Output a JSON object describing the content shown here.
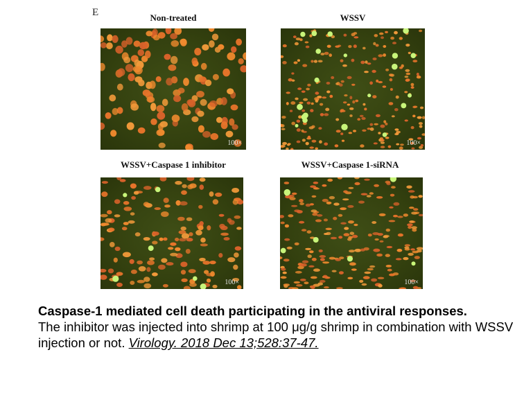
{
  "figure": {
    "panel_letter": "E",
    "panels": [
      {
        "id": "non-treated",
        "title": "Non-treated",
        "magnification": "100×",
        "orange_cells": 130,
        "green_cells": 0
      },
      {
        "id": "wssv",
        "title": "WSSV",
        "magnification": "100×",
        "orange_cells": 230,
        "green_cells": 20
      },
      {
        "id": "caspase-inhibitor",
        "title": "WSSV+Caspase 1 inhibitor",
        "magnification": "100×",
        "orange_cells": 140,
        "green_cells": 6
      },
      {
        "id": "caspase-sirna",
        "title": "WSSV+Caspase 1-siRNA",
        "magnification": "100×",
        "orange_cells": 200,
        "green_cells": 7
      }
    ],
    "colors": {
      "background": "#34410f",
      "orange_cell": "#e8742a",
      "green_cell": "#c8f57a"
    }
  },
  "caption": {
    "title": "Caspase-1 mediated cell death participating in the antiviral responses.",
    "body": "The inhibitor was injected into shrimp at 100 μg/g shrimp in combination with WSSV injection or not.",
    "citation": "Virology. 2018 Dec 13;528:37-47."
  }
}
